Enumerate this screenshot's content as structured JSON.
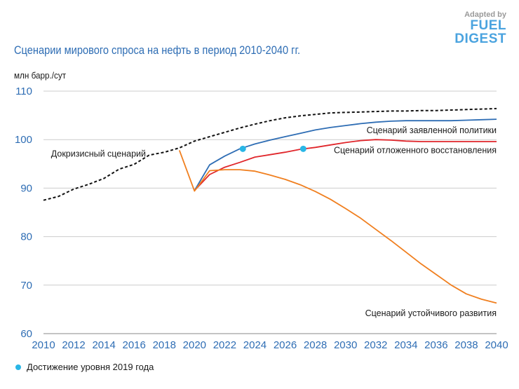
{
  "header": {
    "title": "Сценарии мирового спроса на нефть в период 2010-2040 гг.",
    "unit_label": "млн барр./сут"
  },
  "branding": {
    "small_text": "Adapted by",
    "line1": "FUEL",
    "line2": "DIGEST"
  },
  "legend": {
    "marker_label": "Достижение уровня 2019 года",
    "marker_color": "#29b6e6"
  },
  "colors": {
    "axis": "#2e6db4",
    "precrisis": "#111111",
    "stated": "#2e6db4",
    "delayed": "#e0262b",
    "sustainable": "#f07f1f",
    "grid": "#cccccc"
  },
  "chart_data": {
    "type": "line",
    "title": "Сценарии мирового спроса на нефть в период 2010-2040 гг.",
    "ylabel": "млн барр./сут",
    "xlabel": "",
    "xlim": [
      2010,
      2040
    ],
    "ylim": [
      60,
      110
    ],
    "xticks": [
      2010,
      2012,
      2014,
      2016,
      2018,
      2020,
      2022,
      2024,
      2026,
      2028,
      2030,
      2032,
      2034,
      2036,
      2038,
      2040
    ],
    "yticks": [
      60,
      70,
      80,
      90,
      100,
      110
    ],
    "grid": "horizontal",
    "series": [
      {
        "name": "Докризисный сценарий",
        "style": "dashed",
        "color": "#111111",
        "x": [
          2010,
          2011,
          2012,
          2013,
          2014,
          2015,
          2016,
          2017,
          2018,
          2019,
          2020,
          2021,
          2022,
          2023,
          2024,
          2025,
          2026,
          2027,
          2028,
          2029,
          2030,
          2031,
          2032,
          2033,
          2034,
          2035,
          2036,
          2037,
          2038,
          2039,
          2040
        ],
        "y": [
          87.5,
          88.3,
          89.8,
          90.8,
          92.0,
          93.9,
          94.9,
          96.8,
          97.4,
          98.3,
          99.7,
          100.6,
          101.5,
          102.4,
          103.2,
          103.9,
          104.5,
          104.9,
          105.2,
          105.5,
          105.6,
          105.7,
          105.8,
          105.9,
          105.9,
          106.0,
          106.0,
          106.1,
          106.2,
          106.3,
          106.4
        ]
      },
      {
        "name": "Сценарий заявленной политики",
        "style": "solid",
        "color": "#2e6db4",
        "x": [
          2020,
          2021,
          2022,
          2023,
          2024,
          2025,
          2026,
          2027,
          2028,
          2029,
          2030,
          2031,
          2032,
          2033,
          2034,
          2035,
          2036,
          2037,
          2038,
          2039,
          2040
        ],
        "y": [
          89.5,
          94.8,
          96.6,
          98.1,
          99.1,
          99.9,
          100.6,
          101.3,
          102.0,
          102.5,
          102.9,
          103.3,
          103.6,
          103.8,
          103.9,
          103.9,
          103.9,
          103.9,
          104.0,
          104.1,
          104.2
        ]
      },
      {
        "name": "Сценарий отложенного восстановления",
        "style": "solid",
        "color": "#e0262b",
        "x": [
          2020,
          2021,
          2022,
          2023,
          2024,
          2025,
          2026,
          2027,
          2028,
          2029,
          2030,
          2031,
          2032,
          2033,
          2034,
          2035,
          2036,
          2037,
          2038,
          2039,
          2040
        ],
        "y": [
          89.5,
          92.8,
          94.3,
          95.3,
          96.4,
          96.9,
          97.4,
          98.0,
          98.4,
          98.9,
          99.4,
          99.8,
          100.0,
          99.9,
          99.7,
          99.6,
          99.6,
          99.6,
          99.6,
          99.6,
          99.6
        ]
      },
      {
        "name": "Сценарий устойчивого развития",
        "style": "solid",
        "color": "#f07f1f",
        "x": [
          2019,
          2020,
          2021,
          2022,
          2023,
          2024,
          2025,
          2026,
          2027,
          2028,
          2029,
          2030,
          2031,
          2032,
          2033,
          2034,
          2035,
          2036,
          2037,
          2038,
          2039,
          2040
        ],
        "y": [
          97.8,
          89.4,
          93.6,
          93.8,
          93.8,
          93.5,
          92.7,
          91.8,
          90.7,
          89.3,
          87.7,
          85.8,
          83.8,
          81.5,
          79.2,
          76.8,
          74.4,
          72.2,
          70.0,
          68.2,
          67.1,
          66.3
        ]
      }
    ],
    "annotations": [
      {
        "text": "Докризисный сценарий",
        "series": 0
      },
      {
        "text": "Сценарий заявленной политики",
        "series": 1
      },
      {
        "text": "Сценарий отложенного восстановления",
        "series": 2
      },
      {
        "text": "Сценарий устойчивого развития",
        "series": 3
      }
    ],
    "markers": [
      {
        "series": "Сценарий заявленной политики",
        "x": 2023.2,
        "y": 98.1,
        "label": "Достижение уровня 2019 года"
      },
      {
        "series": "Сценарий отложенного восстановления",
        "x": 2027.2,
        "y": 98.1,
        "label": "Достижение уровня 2019 года"
      }
    ]
  }
}
